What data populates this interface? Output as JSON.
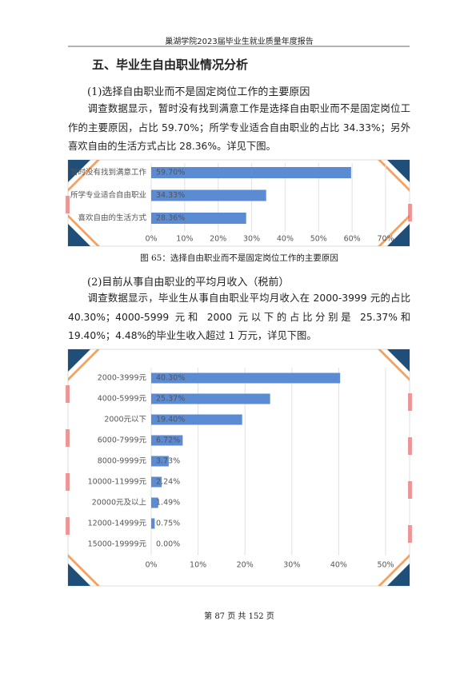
{
  "header": {
    "title": "巢湖学院2023届毕业生就业质量年度报告"
  },
  "section": {
    "title": "五、毕业生自由职业情况分析"
  },
  "parts": [
    {
      "heading": "(1)选择自由职业而不是固定岗位工作的主要原因",
      "paragraph": "调查数据显示，暂时没有找到满意工作是选择自由职业而不是固定岗位工作的主要原因，占比 59.70%；所学专业适合自由职业的占比 34.33%；另外喜欢自由的生活方式占比 28.36%。详见下图。",
      "caption": "图 65：选择自由职业而不是固定岗位工作的主要原因"
    },
    {
      "heading": "(2)目前从事自由职业的平均月收入（税前）",
      "paragraph": "调查数据显示，毕业生从事自由职业平均月收入在 2000-3999 元的占比 40.30%；4000-5999 元和 2000 元以下的占比分别是 25.37%和 19.40%；4.48%的毕业生收入超过 1 万元，详见下图。"
    }
  ],
  "chart_data": [
    {
      "type": "bar",
      "orientation": "horizontal",
      "color": "#5b8bd3",
      "grid": true,
      "categories": [
        "暂时没有找到满意工作",
        "所学专业适合自由职业",
        "喜欢自由的生活方式"
      ],
      "values": [
        59.7,
        34.33,
        28.36
      ],
      "value_labels": [
        "59.70%",
        "34.33%",
        "28.36%"
      ],
      "xlim": [
        0,
        70
      ],
      "xticks": [
        {
          "value": 0,
          "label": "0%"
        },
        {
          "value": 10,
          "label": "10%"
        },
        {
          "value": 20,
          "label": "20%"
        },
        {
          "value": 30,
          "label": "30%"
        },
        {
          "value": 40,
          "label": "40%"
        },
        {
          "value": 50,
          "label": "50%"
        },
        {
          "value": 60,
          "label": "60%"
        },
        {
          "value": 70,
          "label": "70%"
        }
      ]
    },
    {
      "type": "bar",
      "orientation": "horizontal",
      "color": "#5b8bd3",
      "grid": true,
      "categories": [
        "2000-3999元",
        "4000-5999元",
        "2000元以下",
        "6000-7999元",
        "8000-9999元",
        "10000-11999元",
        "20000元及以上",
        "12000-14999元",
        "15000-19999元"
      ],
      "values": [
        40.3,
        25.37,
        19.4,
        6.72,
        3.73,
        2.24,
        1.49,
        0.75,
        0.0
      ],
      "value_labels": [
        "40.30%",
        "25.37%",
        "19.40%",
        "6.72%",
        "3.73%",
        "2.24%",
        "1.49%",
        "0.75%",
        "0.00%"
      ],
      "xlim": [
        0,
        50
      ],
      "xticks": [
        {
          "value": 0,
          "label": "0%"
        },
        {
          "value": 10,
          "label": "10%"
        },
        {
          "value": 20,
          "label": "20%"
        },
        {
          "value": 30,
          "label": "30%"
        },
        {
          "value": 40,
          "label": "40%"
        },
        {
          "value": 50,
          "label": "50%"
        }
      ]
    }
  ],
  "footer": {
    "page": "第 87 页 共 152 页"
  }
}
